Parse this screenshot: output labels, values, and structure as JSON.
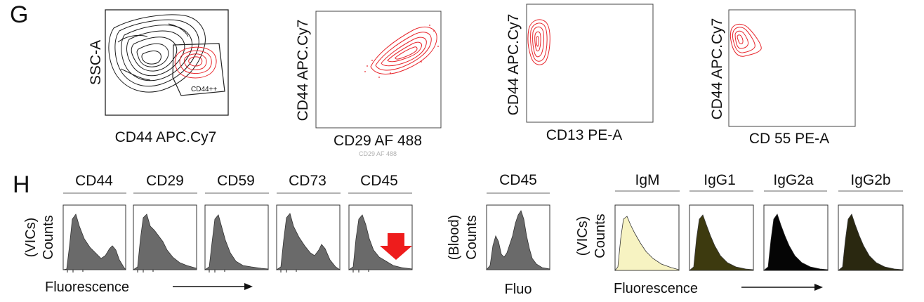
{
  "panel_g": {
    "label": "G",
    "plots": [
      {
        "ylabel": "SSC-A",
        "xlabel": "CD44 APC.Cy7",
        "gate_label": "CD44++"
      },
      {
        "ylabel": "CD44 APC.Cy7",
        "xlabel": "CD29 AF 488",
        "xlabel_ghost": "CD29 AF 488"
      },
      {
        "ylabel": "CD44 APC.Cy7",
        "xlabel": "CD13 PE-A"
      },
      {
        "ylabel": "CD44 APC.Cy7",
        "xlabel": "CD 55 PE-A"
      }
    ]
  },
  "panel_h": {
    "label": "H",
    "vic_group": {
      "ylabel_line1": "(VICs)",
      "ylabel_line2": "Counts",
      "xlabel": "Fluorescence",
      "markers": [
        "CD44",
        "CD29",
        "CD59",
        "CD73",
        "CD45"
      ]
    },
    "blood_group": {
      "ylabel_line1": "(Blood)",
      "ylabel_line2": "Counts",
      "xlabel": "Fluo",
      "markers": [
        "CD45"
      ]
    },
    "isotype_group": {
      "ylabel_line1": "(VICs)",
      "ylabel_line2": "Counts",
      "xlabel": "Fluorescence",
      "markers": [
        "IgM",
        "IgG1",
        "IgG2a",
        "IgG2b"
      ],
      "fills": [
        "#f7f3c2",
        "#3d3a0f",
        "#050505",
        "#2a2810"
      ]
    },
    "histogram_fill": "#6a6a6a",
    "arrow_color": "#ee1c1c"
  },
  "colors": {
    "gated_contour": "#e8252b",
    "ungated_contour": "#1a1a1a"
  }
}
